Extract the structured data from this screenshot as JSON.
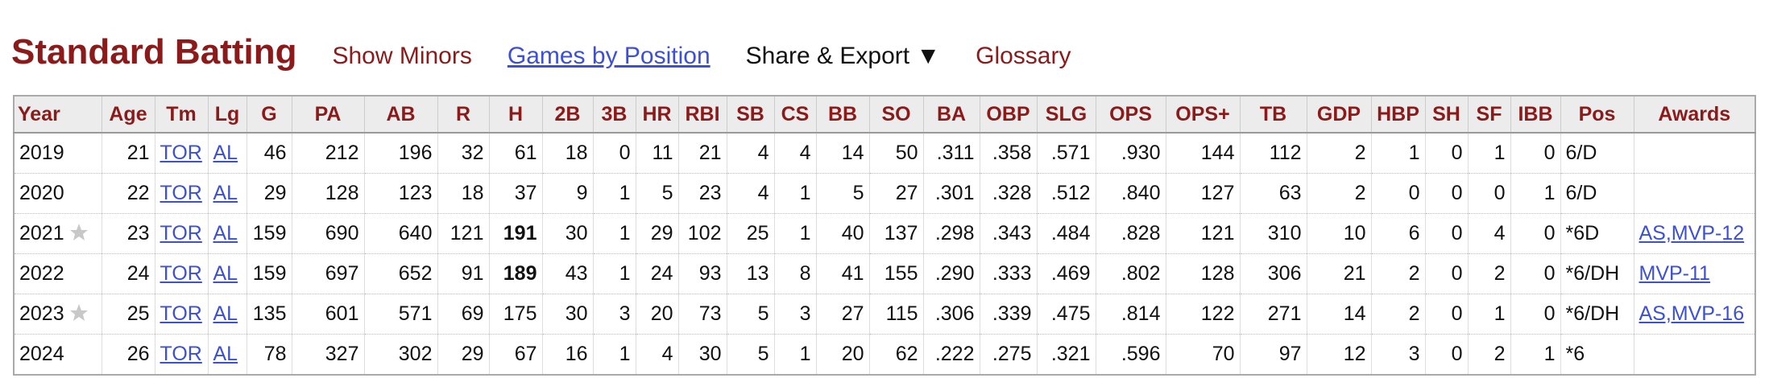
{
  "header": {
    "title": "Standard Batting",
    "links": [
      "Show Minors",
      "Games by Position",
      "Share & Export ▼",
      "Glossary"
    ]
  },
  "table": {
    "columns": [
      "Year",
      "Age",
      "Tm",
      "Lg",
      "G",
      "PA",
      "AB",
      "R",
      "H",
      "2B",
      "3B",
      "HR",
      "RBI",
      "SB",
      "CS",
      "BB",
      "SO",
      "BA",
      "OBP",
      "SLG",
      "OPS",
      "OPS+",
      "TB",
      "GDP",
      "HBP",
      "SH",
      "SF",
      "IBB",
      "Pos",
      "Awards"
    ],
    "rows": [
      [
        "2019",
        "21",
        "TOR",
        "AL",
        "46",
        "212",
        "196",
        "32",
        "61",
        "18",
        "0",
        "11",
        "21",
        "4",
        "4",
        "14",
        "50",
        ".311",
        ".358",
        ".571",
        ".930",
        "144",
        "112",
        "2",
        "1",
        "0",
        "1",
        "0",
        "6/D",
        null
      ],
      [
        "2020",
        "22",
        "TOR",
        "AL",
        "29",
        "128",
        "123",
        "18",
        "37",
        "9",
        "1",
        "5",
        "23",
        "4",
        "1",
        "5",
        "27",
        ".301",
        ".328",
        ".512",
        ".840",
        "127",
        "63",
        "2",
        "0",
        "0",
        "0",
        "1",
        "6/D",
        null
      ],
      [
        "2021",
        "23",
        "TOR",
        "AL",
        "159",
        "690",
        "640",
        "121",
        "191",
        "30",
        "1",
        "29",
        "102",
        "25",
        "1",
        "40",
        "137",
        ".298",
        ".343",
        ".484",
        ".828",
        "121",
        "310",
        "10",
        "6",
        "0",
        "4",
        "0",
        "*6D",
        "AS,MVP-12"
      ],
      [
        "2022",
        "24",
        "TOR",
        "AL",
        "159",
        "697",
        "652",
        "91",
        "189",
        "43",
        "1",
        "24",
        "93",
        "13",
        "8",
        "41",
        "155",
        ".290",
        ".333",
        ".469",
        ".802",
        "128",
        "306",
        "21",
        "2",
        "0",
        "2",
        "0",
        "*6/DH",
        "MVP-11"
      ],
      [
        "2023",
        "25",
        "TOR",
        "AL",
        "135",
        "601",
        "571",
        "69",
        "175",
        "30",
        "3",
        "20",
        "73",
        "5",
        "3",
        "27",
        "115",
        ".306",
        ".339",
        ".475",
        ".814",
        "122",
        "271",
        "14",
        "2",
        "0",
        "1",
        "0",
        "*6/DH",
        "AS,MVP-16"
      ],
      [
        "2024",
        "26",
        "TOR",
        "AL",
        "78",
        "327",
        "302",
        "29",
        "67",
        "16",
        "1",
        "4",
        "30",
        "5",
        "1",
        "20",
        "62",
        ".222",
        ".275",
        ".321",
        ".596",
        "70",
        "97",
        "12",
        "3",
        "0",
        "2",
        "1",
        "*6",
        null
      ]
    ]
  }
}
